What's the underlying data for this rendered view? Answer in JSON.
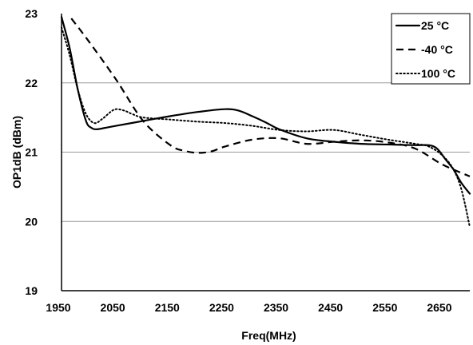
{
  "chart_data": {
    "type": "line",
    "title": "",
    "xlabel": "Freq(MHz)",
    "ylabel": "OP1dB (dBm)",
    "xlim": [
      1950,
      2700
    ],
    "ylim": [
      19,
      23
    ],
    "xticks": [
      1950,
      2050,
      2150,
      2250,
      2350,
      2450,
      2550,
      2650
    ],
    "yticks": [
      19,
      20,
      21,
      22,
      23
    ],
    "grid": {
      "horizontal": true,
      "vertical": false
    },
    "legend_position": "top-right",
    "series": [
      {
        "name": "25 °C",
        "style": "solid",
        "color": "#000000",
        "x": [
          1950,
          1965,
          1980,
          1995,
          2005,
          2015,
          2030,
          2050,
          2100,
          2150,
          2200,
          2250,
          2275,
          2300,
          2325,
          2350,
          2400,
          2450,
          2500,
          2550,
          2600,
          2625,
          2640,
          2655,
          2670,
          2685,
          2700
        ],
        "y": [
          22.95,
          22.5,
          21.9,
          21.45,
          21.35,
          21.33,
          21.35,
          21.38,
          21.45,
          21.52,
          21.58,
          21.62,
          21.6,
          21.52,
          21.43,
          21.33,
          21.2,
          21.15,
          21.12,
          21.11,
          21.1,
          21.1,
          21.05,
          20.9,
          20.75,
          20.55,
          20.4
        ]
      },
      {
        "name": "-40 °C",
        "style": "dashed",
        "color": "#000000",
        "x": [
          1968,
          2000,
          2050,
          2100,
          2150,
          2175,
          2200,
          2225,
          2250,
          2300,
          2350,
          2400,
          2450,
          2500,
          2550,
          2600,
          2650,
          2700
        ],
        "y": [
          22.93,
          22.6,
          22.05,
          21.45,
          21.1,
          21.02,
          20.99,
          21.01,
          21.08,
          21.18,
          21.2,
          21.12,
          21.15,
          21.17,
          21.14,
          21.05,
          20.82,
          20.65
        ]
      },
      {
        "name": "100 °C",
        "style": "dotted",
        "color": "#000000",
        "x": [
          1950,
          1965,
          1980,
          1995,
          2010,
          2025,
          2040,
          2050,
          2065,
          2080,
          2100,
          2150,
          2200,
          2250,
          2300,
          2350,
          2400,
          2450,
          2500,
          2550,
          2600,
          2625,
          2650,
          2670,
          2685,
          2700
        ],
        "y": [
          22.8,
          22.4,
          21.9,
          21.55,
          21.42,
          21.48,
          21.58,
          21.62,
          21.6,
          21.55,
          21.5,
          21.47,
          21.44,
          21.42,
          21.38,
          21.32,
          21.3,
          21.32,
          21.25,
          21.18,
          21.12,
          21.08,
          20.95,
          20.75,
          20.45,
          19.92
        ]
      }
    ]
  }
}
